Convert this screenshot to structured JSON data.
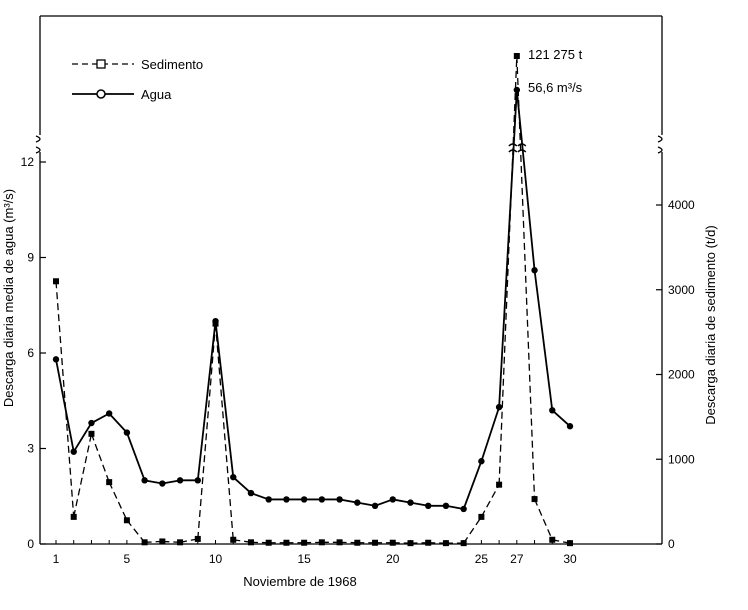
{
  "chart_data": {
    "type": "line",
    "xlabel": "Noviembre de 1968",
    "ylabel_left": "Descarga diaria media de agua (m³/s)",
    "ylabel_right": "Descarga diaria de sedimento (t/d)",
    "x_ticks": [
      1,
      5,
      10,
      15,
      20,
      25,
      27,
      30
    ],
    "x_range": [
      0.5,
      35
    ],
    "y_left_ticks": [
      0,
      3,
      6,
      9,
      12
    ],
    "y_left_range": [
      0,
      12
    ],
    "y_right_ticks": [
      0,
      1000,
      2000,
      3000,
      4000
    ],
    "y_right_range": [
      0,
      4500
    ],
    "axis_break": true,
    "legend_position": "top-left",
    "series": [
      {
        "name": "Sedimento",
        "axis": "right",
        "style": "dashed",
        "marker": "square",
        "x": [
          1,
          2,
          3,
          4,
          5,
          6,
          7,
          8,
          9,
          10,
          11,
          12,
          13,
          14,
          15,
          16,
          17,
          18,
          19,
          20,
          21,
          22,
          23,
          24,
          25,
          26,
          27,
          28,
          29,
          30
        ],
        "y": [
          3100,
          320,
          1300,
          730,
          280,
          20,
          30,
          20,
          60,
          2600,
          50,
          20,
          15,
          15,
          15,
          20,
          20,
          15,
          15,
          15,
          10,
          15,
          10,
          10,
          320,
          700,
          121275,
          530,
          50,
          10
        ]
      },
      {
        "name": "Agua",
        "axis": "left",
        "style": "solid",
        "marker": "circle",
        "x": [
          1,
          2,
          3,
          4,
          5,
          6,
          7,
          8,
          9,
          10,
          11,
          12,
          13,
          14,
          15,
          16,
          17,
          18,
          19,
          20,
          21,
          22,
          23,
          24,
          25,
          26,
          27,
          28,
          29,
          30
        ],
        "y": [
          5.8,
          2.9,
          3.8,
          4.1,
          3.5,
          2.0,
          1.9,
          2.0,
          2.0,
          7.0,
          2.1,
          1.6,
          1.4,
          1.4,
          1.4,
          1.4,
          1.4,
          1.3,
          1.2,
          1.4,
          1.3,
          1.2,
          1.2,
          1.1,
          2.6,
          4.3,
          56.6,
          8.6,
          4.2,
          3.7
        ]
      }
    ],
    "annotations": [
      {
        "text": "121 275 t",
        "series": "Sedimento"
      },
      {
        "text": "56,6 m³/s",
        "series": "Agua"
      }
    ]
  }
}
